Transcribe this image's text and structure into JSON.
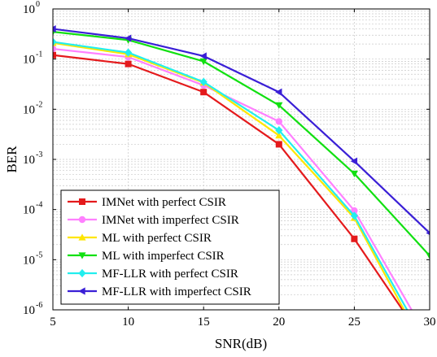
{
  "chart_data": {
    "type": "line",
    "xlabel": "SNR(dB)",
    "ylabel": "BER",
    "xlim": [
      5,
      30
    ],
    "ylim": [
      1e-06,
      1
    ],
    "yscale": "log",
    "grid": true,
    "legend_position": "bottom-left",
    "x_ticks": [
      "5",
      "10",
      "15",
      "20",
      "25",
      "30"
    ],
    "y_ticks": [
      {
        "base": "10",
        "exp": "0"
      },
      {
        "base": "10",
        "exp": "-1"
      },
      {
        "base": "10",
        "exp": "-2"
      },
      {
        "base": "10",
        "exp": "-3"
      },
      {
        "base": "10",
        "exp": "-4"
      },
      {
        "base": "10",
        "exp": "-5"
      },
      {
        "base": "10",
        "exp": "-6"
      }
    ],
    "x": [
      5,
      10,
      15,
      20,
      25,
      30
    ],
    "series": [
      {
        "name": "IMNet with perfect CSIR",
        "color": "#e41a1c",
        "marker": "square",
        "points": [
          [
            5,
            0.12
          ],
          [
            10,
            0.08
          ],
          [
            15,
            0.022
          ],
          [
            20,
            0.002
          ],
          [
            25,
            2.6e-05
          ],
          [
            28.2,
            1e-06
          ]
        ]
      },
      {
        "name": "IMNet with imperfect CSIR",
        "color": "#ff80ff",
        "marker": "circle",
        "points": [
          [
            5,
            0.16
          ],
          [
            10,
            0.11
          ],
          [
            15,
            0.03
          ],
          [
            20,
            0.0057
          ],
          [
            25,
            9.5e-05
          ],
          [
            28.8,
            1e-06
          ]
        ]
      },
      {
        "name": "ML with perfect CSIR",
        "color": "#ffe600",
        "marker": "triangle-up",
        "points": [
          [
            5,
            0.21
          ],
          [
            10,
            0.125
          ],
          [
            15,
            0.034
          ],
          [
            20,
            0.003
          ],
          [
            25,
            6.8e-05
          ],
          [
            28.3,
            1e-06
          ]
        ]
      },
      {
        "name": "ML with imperfect CSIR",
        "color": "#11e011",
        "marker": "triangle-down",
        "points": [
          [
            5,
            0.35
          ],
          [
            10,
            0.24
          ],
          [
            15,
            0.09
          ],
          [
            20,
            0.012
          ],
          [
            25,
            0.00052
          ],
          [
            30,
            1.2e-05
          ]
        ]
      },
      {
        "name": "MF-LLR with perfect CSIR",
        "color": "#22eeee",
        "marker": "diamond",
        "points": [
          [
            5,
            0.22
          ],
          [
            10,
            0.135
          ],
          [
            15,
            0.035
          ],
          [
            20,
            0.0038
          ],
          [
            25,
            7.5e-05
          ],
          [
            28.5,
            1e-06
          ]
        ]
      },
      {
        "name": "MF-LLR with imperfect CSIR",
        "color": "#3a1fd6",
        "marker": "triangle-left",
        "points": [
          [
            5,
            0.4
          ],
          [
            10,
            0.26
          ],
          [
            15,
            0.115
          ],
          [
            20,
            0.022
          ],
          [
            25,
            0.00092
          ],
          [
            30,
            3.4e-05
          ]
        ]
      }
    ]
  }
}
